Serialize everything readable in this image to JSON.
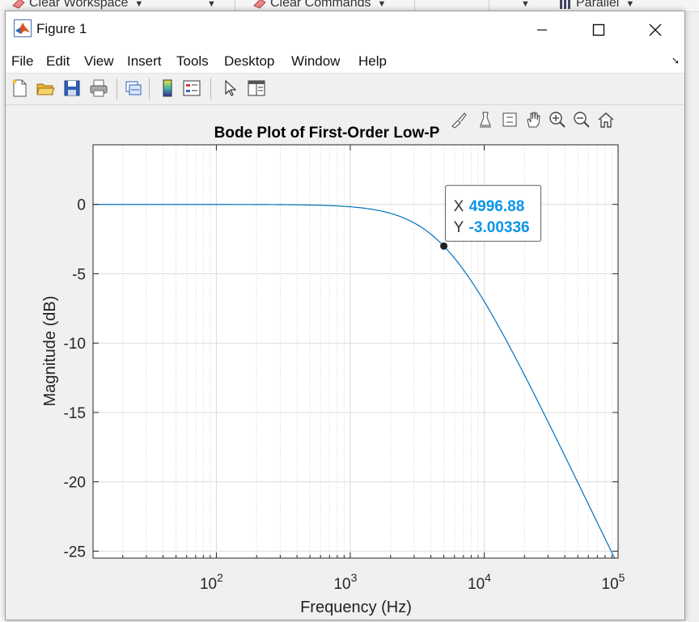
{
  "background_toolbar": {
    "items": [
      {
        "label": "Clear Workspace"
      },
      {
        "label": "Clear Commands"
      },
      {
        "label": "Parallel"
      }
    ]
  },
  "window": {
    "title": "Figure 1",
    "menu": [
      "File",
      "Edit",
      "View",
      "Insert",
      "Tools",
      "Desktop",
      "Window",
      "Help"
    ],
    "toolbar_icons": [
      "new-figure-icon",
      "open-file-icon",
      "save-icon",
      "print-icon",
      "link-plot-icon",
      "colorbar-icon",
      "legend-icon",
      "pointer-icon",
      "property-inspector-icon"
    ],
    "axes_toolbar_icons": [
      "brush-icon",
      "data-tips-icon",
      "rotate-icon",
      "pan-icon",
      "zoom-in-icon",
      "zoom-out-icon",
      "home-icon"
    ]
  },
  "datatip": {
    "x_label": "X",
    "x_value": "4996.88",
    "y_label": "Y",
    "y_value": "-3.00336",
    "value_color": "#0a94e8"
  },
  "chart_data": {
    "type": "line",
    "title": "Bode Plot of First-Order Low-P",
    "xlabel": "Frequency (Hz)",
    "ylabel": "Magnitude (dB)",
    "x_scale": "log",
    "xlim": [
      12,
      100000
    ],
    "ylim": [
      -25.5,
      4.3
    ],
    "x_ticks": [
      100,
      1000,
      10000,
      100000
    ],
    "x_tick_labels": [
      "10^2",
      "10^3",
      "10^4",
      "10^5"
    ],
    "y_ticks": [
      0,
      -5,
      -10,
      -15,
      -20,
      -25
    ],
    "y_tick_labels": [
      "0",
      "-5",
      "-10",
      "-15",
      "-20",
      "-25"
    ],
    "grid": true,
    "minor_grid_x": true,
    "line_color": "#0072bd",
    "series": [
      {
        "cutoff_hz": 5000,
        "x": [
          12,
          50,
          100,
          200,
          300,
          500,
          700,
          1000,
          1500,
          2000,
          3000,
          4000,
          4996.88,
          6000,
          8000,
          10000,
          15000,
          20000,
          30000,
          40000,
          50000,
          60000,
          80000,
          92000
        ],
        "y": [
          0,
          0,
          0,
          -0.01,
          -0.02,
          -0.04,
          -0.08,
          -0.17,
          -0.37,
          -0.64,
          -1.34,
          -2.15,
          -3.00336,
          -3.87,
          -5.53,
          -6.99,
          -10.0,
          -12.3,
          -15.7,
          -18.3,
          -20.0,
          -21.7,
          -24.1,
          -25.3
        ]
      }
    ]
  }
}
